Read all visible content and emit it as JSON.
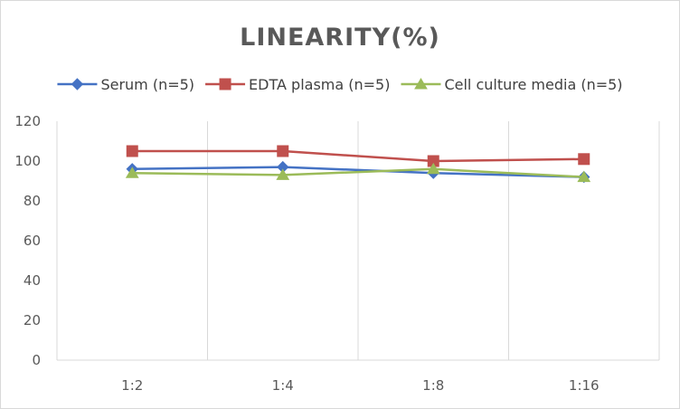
{
  "chart_data": {
    "type": "line",
    "title": "LINEARITY(%)",
    "xlabel": "",
    "ylabel": "",
    "categories": [
      "1:2",
      "1:4",
      "1:8",
      "1:16"
    ],
    "ylim": [
      0,
      120
    ],
    "yticks": [
      0,
      20,
      40,
      60,
      80,
      100,
      120
    ],
    "grid": "vertical",
    "legend_position": "top",
    "series": [
      {
        "name": "Serum (n=5)",
        "color": "#4472C4",
        "marker": "diamond",
        "values": [
          96,
          97,
          94,
          92
        ]
      },
      {
        "name": "EDTA plasma (n=5)",
        "color": "#C0504D",
        "marker": "square",
        "values": [
          105,
          105,
          100,
          101
        ]
      },
      {
        "name": "Cell culture media (n=5)",
        "color": "#9BBB59",
        "marker": "triangle",
        "values": [
          94,
          93,
          96,
          92
        ]
      }
    ]
  }
}
